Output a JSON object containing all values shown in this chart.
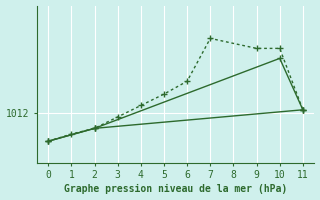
{
  "xlabel": "Graphe pression niveau de la mer (hPa)",
  "background_color": "#cff0ec",
  "grid_color": "#ffffff",
  "line_color": "#2d6a2d",
  "xlim": [
    -0.5,
    11.5
  ],
  "ylim": [
    1008.5,
    1019.5
  ],
  "ytick_value": 1012.0,
  "ytick_label": "1012",
  "xticks": [
    0,
    1,
    2,
    3,
    4,
    5,
    6,
    7,
    8,
    9,
    10,
    11
  ],
  "line1_x": [
    0,
    1,
    2,
    3,
    4,
    5,
    6,
    7,
    9,
    10,
    11
  ],
  "line1_y": [
    1010.0,
    1010.5,
    1010.9,
    1011.7,
    1012.5,
    1013.3,
    1014.2,
    1017.2,
    1016.5,
    1016.5,
    1012.2
  ],
  "line2_x": [
    0,
    2,
    10,
    11
  ],
  "line2_y": [
    1010.0,
    1010.9,
    1015.8,
    1012.2
  ],
  "line3_x": [
    0,
    2,
    11
  ],
  "line3_y": [
    1010.0,
    1010.9,
    1012.2
  ],
  "marker": "+",
  "markersize": 5,
  "linewidth": 1.0,
  "font_size_xlabel": 7,
  "font_size_ytick": 7,
  "font_size_xtick": 7
}
